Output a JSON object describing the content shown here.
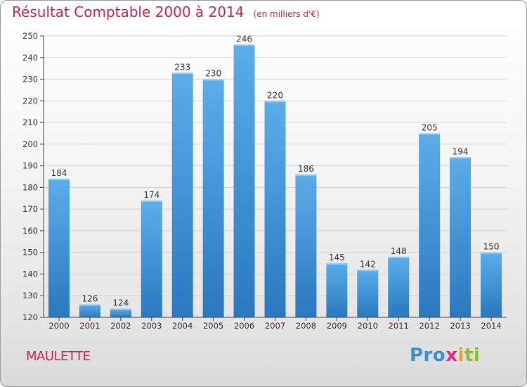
{
  "header": {
    "title": "Résultat Comptable 2000 à 2014",
    "subtitle": "(en milliers d'€)"
  },
  "footer": {
    "commune": "MAULETTE",
    "logo": {
      "parts": [
        "Pro",
        "x",
        "i",
        "ti"
      ]
    }
  },
  "colors": {
    "title": "#c8245c",
    "bar_light": "#5aaeea",
    "bar_dark": "#2a78bf",
    "axis": "#444444"
  },
  "chart_data": {
    "type": "bar",
    "title": "Résultat Comptable 2000 à 2014",
    "subtitle": "(en milliers d'€)",
    "categories": [
      "2000",
      "2001",
      "2002",
      "2003",
      "2004",
      "2005",
      "2006",
      "2007",
      "2008",
      "2009",
      "2010",
      "2011",
      "2012",
      "2013",
      "2014"
    ],
    "values": [
      184,
      126,
      124,
      174,
      233,
      230,
      246,
      220,
      186,
      145,
      142,
      148,
      205,
      194,
      150
    ],
    "ylim": [
      120,
      250
    ],
    "yticks": [
      120,
      130,
      140,
      150,
      160,
      170,
      180,
      190,
      200,
      210,
      220,
      230,
      240,
      250
    ],
    "grid": true,
    "data_labels": true,
    "xlabel": "",
    "ylabel": ""
  }
}
